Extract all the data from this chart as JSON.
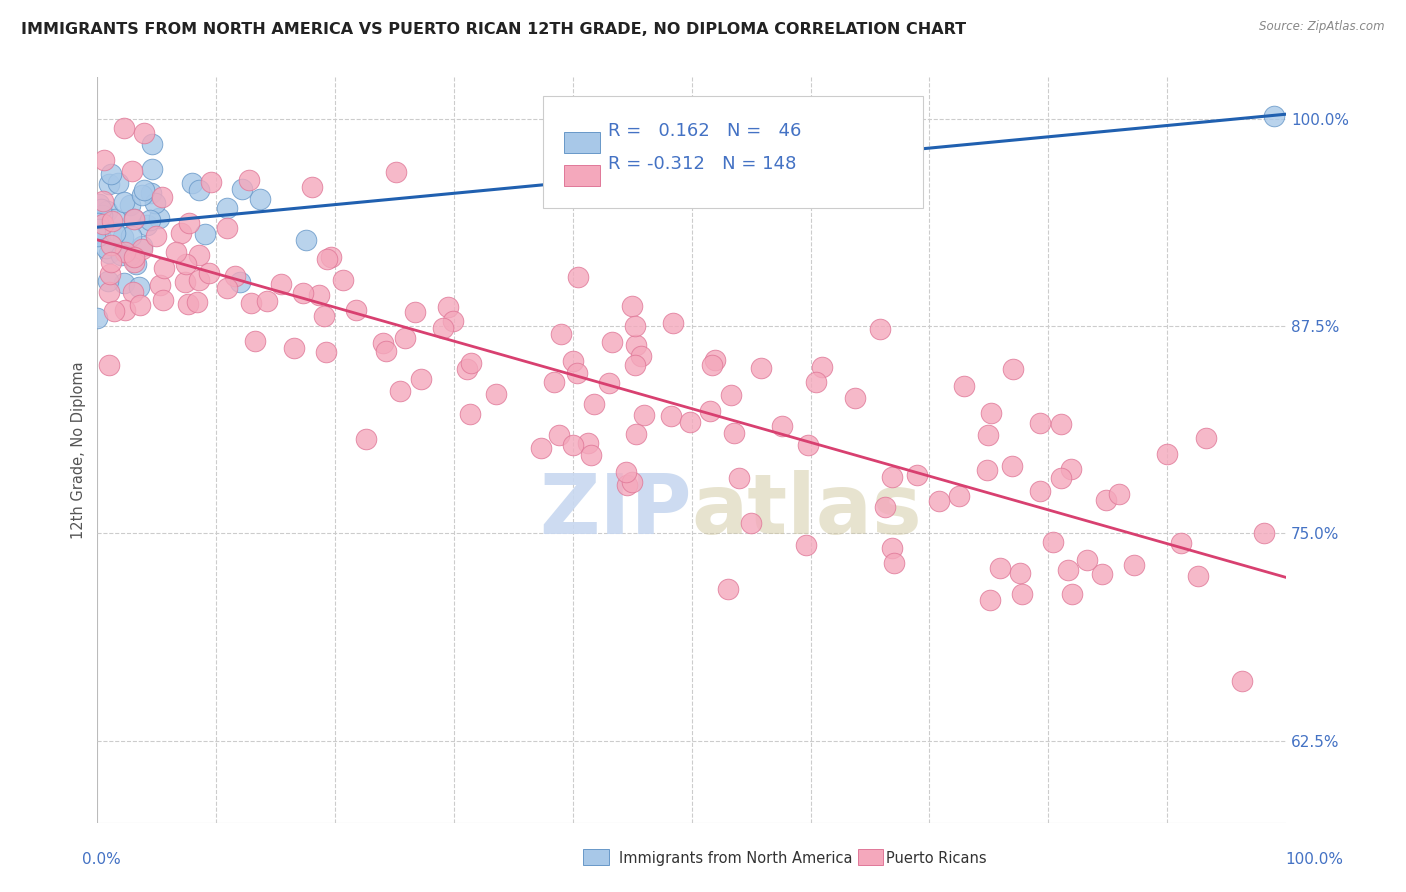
{
  "title": "IMMIGRANTS FROM NORTH AMERICA VS PUERTO RICAN 12TH GRADE, NO DIPLOMA CORRELATION CHART",
  "source": "Source: ZipAtlas.com",
  "ylabel": "12th Grade, No Diploma",
  "y_ticks": [
    0.625,
    0.75,
    0.875,
    1.0
  ],
  "y_tick_labels": [
    "62.5%",
    "75.0%",
    "87.5%",
    "100.0%"
  ],
  "xlim": [
    0.0,
    1.0
  ],
  "ylim": [
    0.575,
    1.025
  ],
  "legend_blue_label": "Immigrants from North America",
  "legend_pink_label": "Puerto Ricans",
  "R_blue": 0.162,
  "N_blue": 46,
  "R_pink": -0.312,
  "N_pink": 148,
  "blue_color": "#A8C8E8",
  "pink_color": "#F4A8BC",
  "blue_edge_color": "#6898C8",
  "pink_edge_color": "#E07898",
  "blue_line_color": "#2060B0",
  "pink_line_color": "#D84070",
  "axis_label_color": "#4472C4",
  "watermark_color": "#C8D8F0",
  "background_color": "#FFFFFF",
  "grid_color": "#CCCCCC",
  "title_fontsize": 11.5,
  "tick_fontsize": 11,
  "legend_fontsize": 11
}
